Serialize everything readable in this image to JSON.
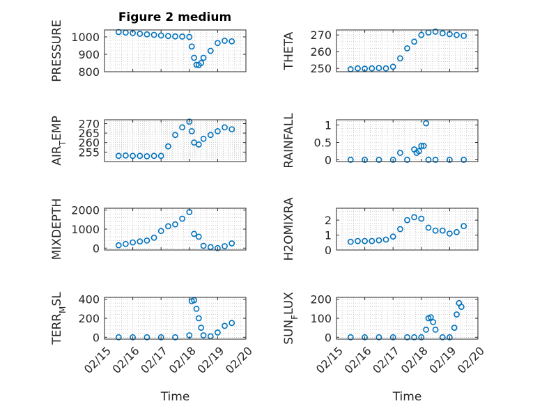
{
  "figure_title": "Figure 2 medium",
  "colors": {
    "marker": "#0072BD",
    "grid": "#b0b0b0",
    "axis": "#262626"
  },
  "chart_data": [
    {
      "type": "scatter",
      "title": "Figure 2 medium",
      "ylabel": "PRESSURE",
      "xlim": [
        "02/15",
        "02/20"
      ],
      "ylim": [
        800,
        1040
      ],
      "yticks": [
        800,
        900,
        1000
      ],
      "xticks": [
        "02/15",
        "02/16",
        "02/17",
        "02/18",
        "02/19",
        "02/20"
      ],
      "xlabel": "",
      "grid": true,
      "marker": "circle",
      "x": [
        "02/15 12:00",
        "02/15 18:00",
        "02/16 00:00",
        "02/16 06:00",
        "02/16 12:00",
        "02/16 18:00",
        "02/17 00:00",
        "02/17 06:00",
        "02/17 12:00",
        "02/17 18:00",
        "02/18 00:00",
        "02/18 02:00",
        "02/18 04:00",
        "02/18 06:00",
        "02/18 08:00",
        "02/18 10:00",
        "02/18 12:00",
        "02/18 18:00",
        "02/19 00:00",
        "02/19 06:00",
        "02/19 12:00"
      ],
      "y": [
        1028,
        1025,
        1022,
        1018,
        1015,
        1012,
        1008,
        1005,
        1003,
        1002,
        1000,
        945,
        880,
        840,
        838,
        850,
        880,
        920,
        965,
        978,
        975
      ]
    },
    {
      "type": "scatter",
      "title": "",
      "ylabel": "THETA",
      "xlim": [
        "02/15",
        "02/20"
      ],
      "ylim": [
        248,
        273
      ],
      "yticks": [
        250,
        260,
        270
      ],
      "xticks": [
        "02/15",
        "02/16",
        "02/17",
        "02/18",
        "02/19",
        "02/20"
      ],
      "xlabel": "",
      "grid": true,
      "marker": "circle",
      "x": [
        "02/15 12:00",
        "02/15 18:00",
        "02/16 00:00",
        "02/16 06:00",
        "02/16 12:00",
        "02/16 18:00",
        "02/17 00:00",
        "02/17 06:00",
        "02/17 12:00",
        "02/17 18:00",
        "02/18 00:00",
        "02/18 06:00",
        "02/18 12:00",
        "02/18 18:00",
        "02/19 00:00",
        "02/19 06:00",
        "02/19 12:00"
      ],
      "y": [
        249.5,
        250,
        249.8,
        250,
        250.2,
        250,
        251,
        256,
        262,
        266,
        270,
        271.5,
        272,
        271,
        270.5,
        270,
        269.5
      ]
    },
    {
      "type": "scatter",
      "title": "",
      "ylabel": "AIR_TEMP",
      "xlim": [
        "02/15",
        "02/20"
      ],
      "ylim": [
        250,
        272
      ],
      "yticks": [
        255,
        260,
        265,
        270
      ],
      "xticks": [
        "02/15",
        "02/16",
        "02/17",
        "02/18",
        "02/19",
        "02/20"
      ],
      "xlabel": "",
      "grid": true,
      "marker": "circle",
      "x": [
        "02/15 12:00",
        "02/15 18:00",
        "02/16 00:00",
        "02/16 06:00",
        "02/16 12:00",
        "02/16 18:00",
        "02/17 00:00",
        "02/17 06:00",
        "02/17 12:00",
        "02/17 18:00",
        "02/18 00:00",
        "02/18 02:00",
        "02/18 04:00",
        "02/18 08:00",
        "02/18 12:00",
        "02/18 18:00",
        "02/19 00:00",
        "02/19 06:00",
        "02/19 12:00"
      ],
      "y": [
        253,
        253.2,
        253,
        253,
        252.8,
        253,
        253,
        258,
        264,
        268,
        271,
        266,
        260,
        259,
        262,
        264,
        266,
        268,
        267
      ]
    },
    {
      "type": "scatter",
      "title": "",
      "ylabel": "RAINFALL",
      "xlim": [
        "02/15",
        "02/20"
      ],
      "ylim": [
        -0.05,
        1.15
      ],
      "yticks": [
        0,
        0.5,
        1
      ],
      "xticks": [
        "02/15",
        "02/16",
        "02/17",
        "02/18",
        "02/19",
        "02/20"
      ],
      "xlabel": "",
      "grid": true,
      "marker": "circle",
      "x": [
        "02/15 12:00",
        "02/16 00:00",
        "02/16 12:00",
        "02/17 00:00",
        "02/17 06:00",
        "02/17 12:00",
        "02/17 18:00",
        "02/17 20:00",
        "02/17 22:00",
        "02/18 00:00",
        "02/18 02:00",
        "02/18 04:00",
        "02/18 06:00",
        "02/18 12:00",
        "02/19 00:00",
        "02/19 12:00"
      ],
      "y": [
        0,
        0,
        0,
        0,
        0.2,
        0,
        0.3,
        0.2,
        0.25,
        0.4,
        0.4,
        1.05,
        0,
        0,
        0,
        0
      ]
    },
    {
      "type": "scatter",
      "title": "",
      "ylabel": "MIXDEPTH",
      "xlim": [
        "02/15",
        "02/20"
      ],
      "ylim": [
        -100,
        2100
      ],
      "yticks": [
        0,
        1000,
        2000
      ],
      "xticks": [
        "02/15",
        "02/16",
        "02/17",
        "02/18",
        "02/19",
        "02/20"
      ],
      "xlabel": "",
      "grid": true,
      "marker": "circle",
      "x": [
        "02/15 12:00",
        "02/15 18:00",
        "02/16 00:00",
        "02/16 06:00",
        "02/16 12:00",
        "02/16 18:00",
        "02/17 00:00",
        "02/17 06:00",
        "02/17 12:00",
        "02/17 18:00",
        "02/18 00:00",
        "02/18 04:00",
        "02/18 08:00",
        "02/18 12:00",
        "02/18 18:00",
        "02/19 00:00",
        "02/19 06:00",
        "02/19 12:00"
      ],
      "y": [
        150,
        220,
        300,
        350,
        400,
        550,
        900,
        1150,
        1250,
        1550,
        1900,
        750,
        600,
        120,
        50,
        0,
        100,
        250
      ]
    },
    {
      "type": "scatter",
      "title": "",
      "ylabel": "H2OMIXRA",
      "xlim": [
        "02/15",
        "02/20"
      ],
      "ylim": [
        0,
        2.8
      ],
      "yticks": [
        0,
        1,
        2
      ],
      "xticks": [
        "02/15",
        "02/16",
        "02/17",
        "02/18",
        "02/19",
        "02/20"
      ],
      "xlabel": "",
      "grid": true,
      "marker": "circle",
      "x": [
        "02/15 12:00",
        "02/15 18:00",
        "02/16 00:00",
        "02/16 06:00",
        "02/16 12:00",
        "02/16 18:00",
        "02/17 00:00",
        "02/17 06:00",
        "02/17 12:00",
        "02/17 18:00",
        "02/18 00:00",
        "02/18 06:00",
        "02/18 12:00",
        "02/18 18:00",
        "02/19 00:00",
        "02/19 06:00",
        "02/19 12:00"
      ],
      "y": [
        0.55,
        0.6,
        0.6,
        0.6,
        0.65,
        0.7,
        0.9,
        1.4,
        2.0,
        2.2,
        2.1,
        1.5,
        1.3,
        1.3,
        1.1,
        1.2,
        1.6
      ]
    },
    {
      "type": "scatter",
      "title": "",
      "ylabel": "TERR_MSL",
      "xlim": [
        "02/15",
        "02/20"
      ],
      "ylim": [
        -20,
        420
      ],
      "yticks": [
        0,
        200,
        400
      ],
      "xticks": [
        "02/15",
        "02/16",
        "02/17",
        "02/18",
        "02/19",
        "02/20"
      ],
      "xlabel": "Time",
      "grid": true,
      "marker": "circle",
      "x": [
        "02/15 12:00",
        "02/16 00:00",
        "02/16 12:00",
        "02/17 00:00",
        "02/17 12:00",
        "02/18 00:00",
        "02/18 02:00",
        "02/18 04:00",
        "02/18 06:00",
        "02/18 08:00",
        "02/18 10:00",
        "02/18 12:00",
        "02/18 18:00",
        "02/19 00:00",
        "02/19 06:00",
        "02/19 12:00"
      ],
      "y": [
        0,
        0,
        0,
        0,
        0,
        20,
        380,
        390,
        300,
        200,
        100,
        20,
        10,
        50,
        120,
        150
      ]
    },
    {
      "type": "scatter",
      "title": "",
      "ylabel": "SUN_FLUX",
      "xlim": [
        "02/15",
        "02/20"
      ],
      "ylim": [
        -10,
        210
      ],
      "yticks": [
        0,
        100,
        200
      ],
      "xticks": [
        "02/15",
        "02/16",
        "02/17",
        "02/18",
        "02/19",
        "02/20"
      ],
      "xlabel": "Time",
      "grid": true,
      "marker": "circle",
      "x": [
        "02/15 12:00",
        "02/16 00:00",
        "02/16 12:00",
        "02/17 00:00",
        "02/17 12:00",
        "02/17 18:00",
        "02/18 00:00",
        "02/18 04:00",
        "02/18 06:00",
        "02/18 08:00",
        "02/18 10:00",
        "02/18 12:00",
        "02/18 18:00",
        "02/19 00:00",
        "02/19 04:00",
        "02/19 06:00",
        "02/19 08:00",
        "02/19 10:00"
      ],
      "y": [
        0,
        0,
        0,
        0,
        0,
        0,
        0,
        40,
        100,
        105,
        80,
        40,
        0,
        0,
        50,
        120,
        180,
        160
      ]
    }
  ]
}
